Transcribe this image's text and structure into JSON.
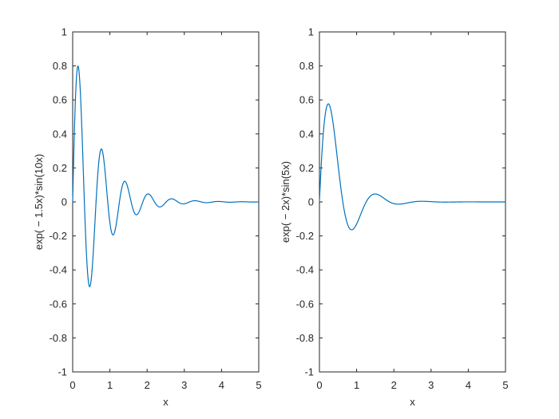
{
  "chart_data": [
    {
      "type": "line",
      "function": "exp(-1.5x)*sin(10x)",
      "xlabel": "x",
      "ylabel": "exp( − 1.5x)*sin(10x)",
      "xlim": [
        0,
        5
      ],
      "ylim": [
        -1,
        1
      ],
      "xticks": [
        0,
        1,
        2,
        3,
        4,
        5
      ],
      "yticks": [
        -1,
        -0.8,
        -0.6,
        -0.4,
        -0.2,
        0,
        0.2,
        0.4,
        0.6,
        0.8,
        1
      ],
      "grid": false,
      "series_color": "#0072BD",
      "x": [
        0,
        0.15,
        0.3,
        0.47,
        0.6,
        0.78,
        0.95,
        1.1,
        1.4,
        1.72,
        2.05,
        2.35,
        2.68,
        3.0,
        3.3,
        3.6,
        4.0,
        4.5,
        5.0
      ],
      "y": [
        0,
        0.797,
        0.09,
        -0.5,
        -0.11,
        0.309,
        0.02,
        -0.19,
        0.12,
        -0.07,
        0.045,
        -0.03,
        0.018,
        -0.011,
        0.006,
        -0.004,
        0.002,
        -0.001,
        0
      ]
    },
    {
      "type": "line",
      "function": "exp(-2x)*sin(5x)",
      "xlabel": "x",
      "ylabel": "exp( − 2x)*sin(5x)",
      "xlim": [
        0,
        5
      ],
      "ylim": [
        -1,
        1
      ],
      "xticks": [
        0,
        1,
        2,
        3,
        4,
        5
      ],
      "yticks": [
        -1,
        -0.8,
        -0.6,
        -0.4,
        -0.2,
        0,
        0.2,
        0.4,
        0.6,
        0.8,
        1
      ],
      "grid": false,
      "series_color": "#0072BD",
      "x": [
        0,
        0.1,
        0.24,
        0.5,
        0.84,
        1.2,
        1.47,
        1.8,
        2.1,
        2.6,
        3.0,
        4.0,
        5.0
      ],
      "y": [
        0,
        0.39,
        0.577,
        0.22,
        -0.163,
        -0.02,
        0.048,
        0.011,
        -0.013,
        -0.001,
        0.002,
        0,
        0
      ]
    }
  ]
}
